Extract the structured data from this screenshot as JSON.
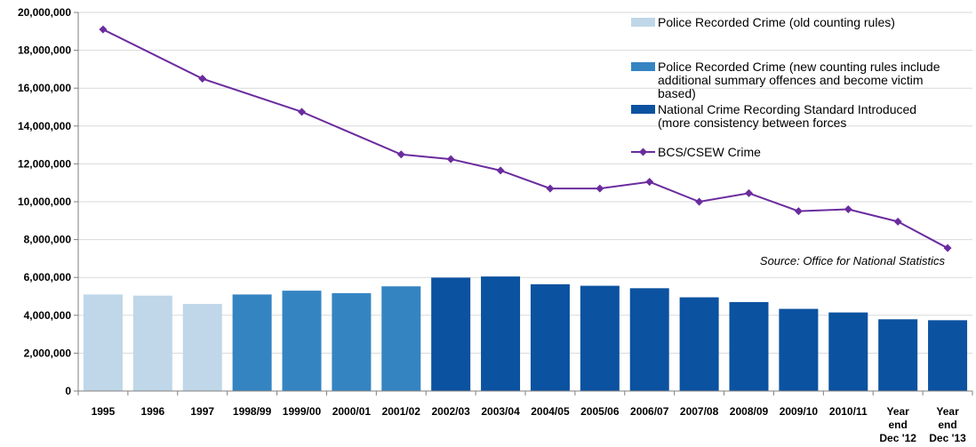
{
  "chart_data": {
    "type": "bar",
    "categories": [
      [
        "1995"
      ],
      [
        "1996"
      ],
      [
        "1997"
      ],
      [
        "1998/99"
      ],
      [
        "1999/00"
      ],
      [
        "2000/01"
      ],
      [
        "2001/02"
      ],
      [
        "2002/03"
      ],
      [
        "2003/04"
      ],
      [
        "2004/05"
      ],
      [
        "2005/06"
      ],
      [
        "2006/07"
      ],
      [
        "2007/08"
      ],
      [
        "2008/09"
      ],
      [
        "2009/10"
      ],
      [
        "2010/11"
      ],
      [
        "Year",
        "end",
        "Dec '12"
      ],
      [
        "Year",
        "end",
        "Dec '13"
      ]
    ],
    "ylim": [
      0,
      20000000
    ],
    "yticks": [
      0,
      2000000,
      4000000,
      6000000,
      8000000,
      10000000,
      12000000,
      14000000,
      16000000,
      18000000,
      20000000
    ],
    "ytick_labels": [
      "0",
      "2,000,000",
      "4,000,000",
      "6,000,000",
      "8,000,000",
      "10,000,000",
      "12,000,000",
      "14,000,000",
      "16,000,000",
      "18,000,000",
      "20,000,000"
    ],
    "grid": true,
    "legend_position": "top-right",
    "bar_series": [
      {
        "name": "Police Recorded Crime (old counting rules)",
        "name_lines": [
          "Police Recorded Crime (old counting rules)"
        ],
        "color": "#bfd7e8",
        "start": 0,
        "end": 2
      },
      {
        "name": "Police Recorded Crime (new counting rules include additional summary offences and become victim based)",
        "name_lines": [
          "Police Recorded Crime (new counting rules include",
          "additional summary offences and become victim",
          "based)"
        ],
        "color": "#3584c2",
        "start": 3,
        "end": 6
      },
      {
        "name": "National Crime Recording Standard Introduced (more consistency between forces",
        "name_lines": [
          "National Crime Recording Standard Introduced",
          "(more consistency between forces"
        ],
        "color": "#0b52a0",
        "start": 7,
        "end": 17
      }
    ],
    "bar_values": [
      5100000,
      5040000,
      4600000,
      5100000,
      5300000,
      5170000,
      5530000,
      5990000,
      6050000,
      5640000,
      5560000,
      5430000,
      4950000,
      4700000,
      4340000,
      4150000,
      3790000,
      3740000
    ],
    "line_series": {
      "name": "BCS/CSEW Crime",
      "name_lines": [
        "BCS/CSEW Crime"
      ],
      "color": "#6a2c9e",
      "values": [
        19100000,
        16500000,
        14750000,
        12500000,
        12250000,
        11650000,
        10700000,
        10700000,
        11050000,
        10000000,
        10450000,
        9500000,
        9600000,
        8950000,
        7550000
      ],
      "x_index": [
        0,
        2,
        4,
        6,
        7,
        8,
        9,
        10,
        11,
        12,
        13,
        14,
        15,
        16,
        17
      ]
    },
    "annotation": "Source: Office for National Statistics"
  }
}
